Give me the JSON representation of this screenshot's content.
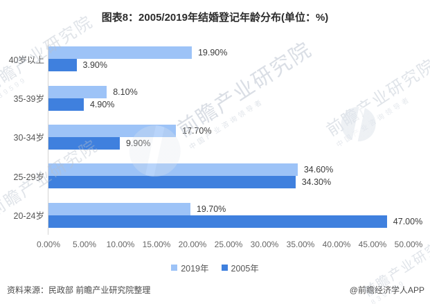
{
  "title": "图表8：2005/2019年结婚登记年龄分布(单位：%)",
  "chart_data": {
    "type": "bar",
    "orientation": "horizontal",
    "title": "图表8：2005/2019年结婚登记年龄分布(单位：%)",
    "categories_top_to_bottom": [
      "40岁以上",
      "35-39岁",
      "30-34岁",
      "25-29岁",
      "20-24岁"
    ],
    "series": [
      {
        "name": "2019年",
        "color": "#9dc3f7",
        "values": [
          19.9,
          8.1,
          17.7,
          34.6,
          19.7
        ],
        "labels": [
          "19.90%",
          "8.10%",
          "17.70%",
          "34.60%",
          "19.70%"
        ]
      },
      {
        "name": "2005年",
        "color": "#3f80de",
        "values": [
          3.9,
          4.9,
          9.9,
          34.3,
          47.0
        ],
        "labels": [
          "3.90%",
          "4.90%",
          "9.90%",
          "34.30%",
          "47.00%"
        ]
      }
    ],
    "xlim": [
      0,
      50
    ],
    "xticks": [
      "0.00%",
      "5.00%",
      "10.00%",
      "15.00%",
      "20.00%",
      "25.00%",
      "30.00%",
      "35.00%",
      "40.00%",
      "45.00%",
      "50.00%"
    ],
    "grid": false,
    "legend_position": "bottom"
  },
  "footer": {
    "source": "资料来源：民政部 前瞻产业研究院整理",
    "credit": "@前瞻经济学人APP"
  },
  "watermark": {
    "brand": "前瞻产业研究院",
    "slogan": "中国产业咨询领导者",
    "code": "839599"
  }
}
